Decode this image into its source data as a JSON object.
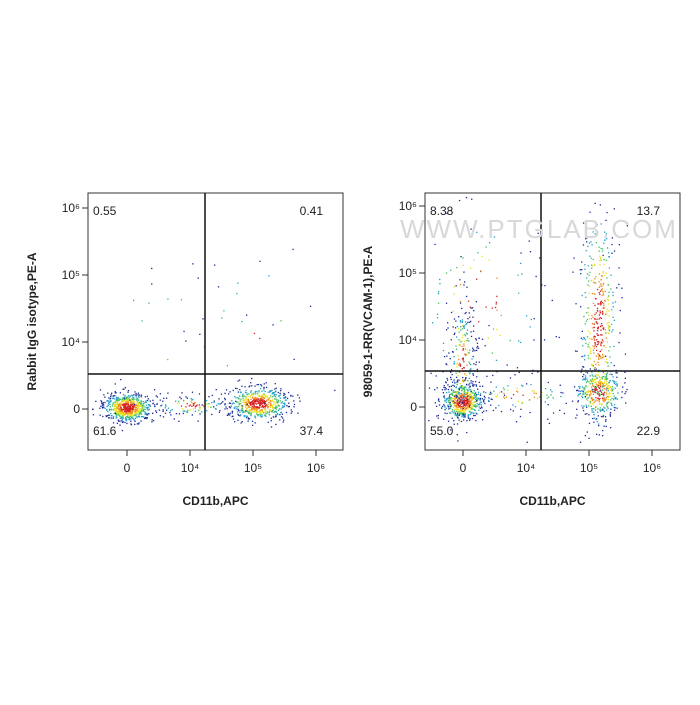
{
  "watermark": "WWW.PTGLAB.COM",
  "panels": [
    {
      "y_label": "Rabbit IgG isotype,PE-A",
      "x_label": "CD11b,APC",
      "quadrants": {
        "upper_left": "0.55",
        "upper_right": "0.41",
        "lower_left": "61.6",
        "lower_right": "37.4"
      },
      "xticks": [
        0,
        {
          "value": 10000,
          "label": "10⁴"
        },
        {
          "value": 100000,
          "label": "10⁵"
        },
        {
          "value": 1000000,
          "label": "10⁶"
        }
      ],
      "yticks": [
        0,
        {
          "value": 10000,
          "label": "10⁴"
        },
        {
          "value": 100000,
          "label": "10⁵"
        },
        {
          "value": 1000000,
          "label": "10⁶"
        }
      ]
    },
    {
      "y_label": "98059-1-RR(VCAM-1),PE-A",
      "x_label": "CD11b,APC",
      "quadrants": {
        "upper_left": "8.38",
        "upper_right": "13.7",
        "lower_left": "55.0",
        "lower_right": "22.9"
      },
      "xticks": [
        0,
        {
          "value": 10000,
          "label": "10⁴"
        },
        {
          "value": 100000,
          "label": "10⁵"
        },
        {
          "value": 1000000,
          "label": "10⁶"
        }
      ],
      "yticks": [
        0,
        {
          "value": 10000,
          "label": "10⁴"
        },
        {
          "value": 100000,
          "label": "10⁵"
        },
        {
          "value": 1000000,
          "label": "10⁶"
        }
      ]
    }
  ]
}
